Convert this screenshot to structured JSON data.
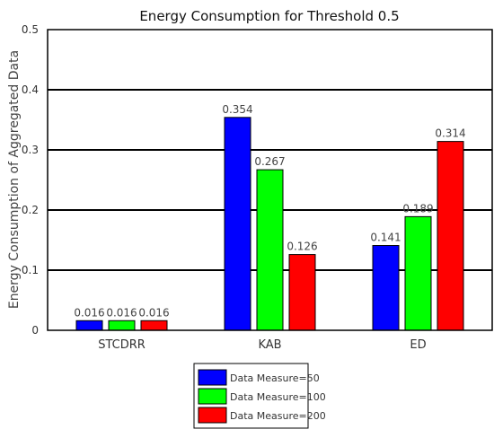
{
  "chart_data": {
    "type": "bar",
    "title": "Energy Consumption for Threshold 0.5",
    "xlabel": "",
    "ylabel": "Energy Consumption of Aggregated Data",
    "ylim": [
      0,
      0.5
    ],
    "yticks": [
      "0",
      "0.1",
      "0.2",
      "0.3",
      "0.4",
      "0.5"
    ],
    "grid": true,
    "legend_position": "bottom-center",
    "categories": [
      "STCDRR",
      "KAB",
      "ED"
    ],
    "series": [
      {
        "name": "Data Measure=50",
        "color": "#0000ff",
        "values": [
          0.016,
          0.354,
          0.141
        ],
        "labels": [
          "0.016",
          "0.354",
          "0.141"
        ]
      },
      {
        "name": "Data Measure=100",
        "color": "#00ff00",
        "values": [
          0.016,
          0.267,
          0.189
        ],
        "labels": [
          "0.016",
          "0.267",
          "0.189"
        ]
      },
      {
        "name": "Data Measure=200",
        "color": "#ff0000",
        "values": [
          0.016,
          0.126,
          0.314
        ],
        "labels": [
          "0.016",
          "0.126",
          "0.314"
        ]
      }
    ]
  }
}
